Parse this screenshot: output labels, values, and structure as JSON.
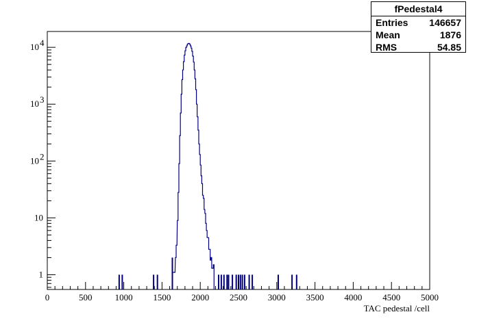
{
  "stats": {
    "title": "fPedestal4",
    "rows": [
      {
        "label": "Entries",
        "value": "146657"
      },
      {
        "label": "Mean",
        "value": "1876"
      },
      {
        "label": "RMS",
        "value": "54.85"
      }
    ]
  },
  "chart_data": {
    "type": "histogram",
    "title": "",
    "xlabel": "TAC pedestal /cell",
    "ylabel": "",
    "xlim": [
      0,
      5000
    ],
    "ylim": [
      0.55,
      19000
    ],
    "yscale": "log",
    "grid": false,
    "line_color": "#000080",
    "x_ticks": [
      "0",
      "500",
      "1000",
      "1500",
      "2000",
      "2500",
      "3000",
      "3500",
      "4000",
      "4500",
      "5000"
    ],
    "y_ticks": [
      {
        "value": 1,
        "label": "1"
      },
      {
        "value": 10,
        "label": "10"
      },
      {
        "value": 100,
        "label": "10",
        "exp": "2"
      },
      {
        "value": 1000,
        "label": "10",
        "exp": "3"
      },
      {
        "value": 10000,
        "label": "10",
        "exp": "4"
      }
    ],
    "bins": [
      [
        1635,
        1.1
      ],
      [
        1660,
        1.1
      ],
      [
        1675,
        2.0
      ],
      [
        1685,
        3.3
      ],
      [
        1700,
        9.0
      ],
      [
        1710,
        28
      ],
      [
        1720,
        90
      ],
      [
        1730,
        280
      ],
      [
        1740,
        700
      ],
      [
        1750,
        1500
      ],
      [
        1760,
        2700
      ],
      [
        1770,
        4000
      ],
      [
        1780,
        5600
      ],
      [
        1790,
        7300
      ],
      [
        1800,
        8700
      ],
      [
        1810,
        9900
      ],
      [
        1820,
        10600
      ],
      [
        1830,
        11300
      ],
      [
        1840,
        11700
      ],
      [
        1850,
        11700
      ],
      [
        1860,
        11300
      ],
      [
        1870,
        10600
      ],
      [
        1880,
        9700
      ],
      [
        1890,
        8500
      ],
      [
        1900,
        7000
      ],
      [
        1910,
        5500
      ],
      [
        1920,
        4000
      ],
      [
        1930,
        2800
      ],
      [
        1940,
        1800
      ],
      [
        1950,
        1000
      ],
      [
        1960,
        600
      ],
      [
        1970,
        350
      ],
      [
        1980,
        200
      ],
      [
        1990,
        130
      ],
      [
        2000,
        85
      ],
      [
        2010,
        55
      ],
      [
        2020,
        40
      ],
      [
        2030,
        25
      ],
      [
        2040,
        22
      ],
      [
        2050,
        14
      ],
      [
        2060,
        12
      ],
      [
        2070,
        8
      ],
      [
        2080,
        6
      ],
      [
        2090,
        4.5
      ],
      [
        2100,
        4.5
      ],
      [
        2110,
        2.8
      ],
      [
        2120,
        2.8
      ],
      [
        2130,
        1.8
      ],
      [
        2140,
        2.0
      ],
      [
        2150,
        1.3
      ],
      [
        2160,
        1.3
      ],
      [
        2170,
        1.5
      ]
    ],
    "isolated_bins": [
      [
        940,
        1
      ],
      [
        980,
        1
      ],
      [
        1390,
        1
      ],
      [
        1440,
        1
      ],
      [
        1635,
        2
      ],
      [
        2240,
        1
      ],
      [
        2275,
        1
      ],
      [
        2310,
        1
      ],
      [
        2350,
        1
      ],
      [
        2370,
        1
      ],
      [
        2420,
        1
      ],
      [
        2470,
        1
      ],
      [
        2500,
        1
      ],
      [
        2525,
        1
      ],
      [
        2550,
        1
      ],
      [
        2580,
        1
      ],
      [
        2640,
        1
      ],
      [
        2680,
        1
      ],
      [
        3020,
        1
      ],
      [
        3200,
        1
      ],
      [
        3260,
        1
      ]
    ]
  }
}
